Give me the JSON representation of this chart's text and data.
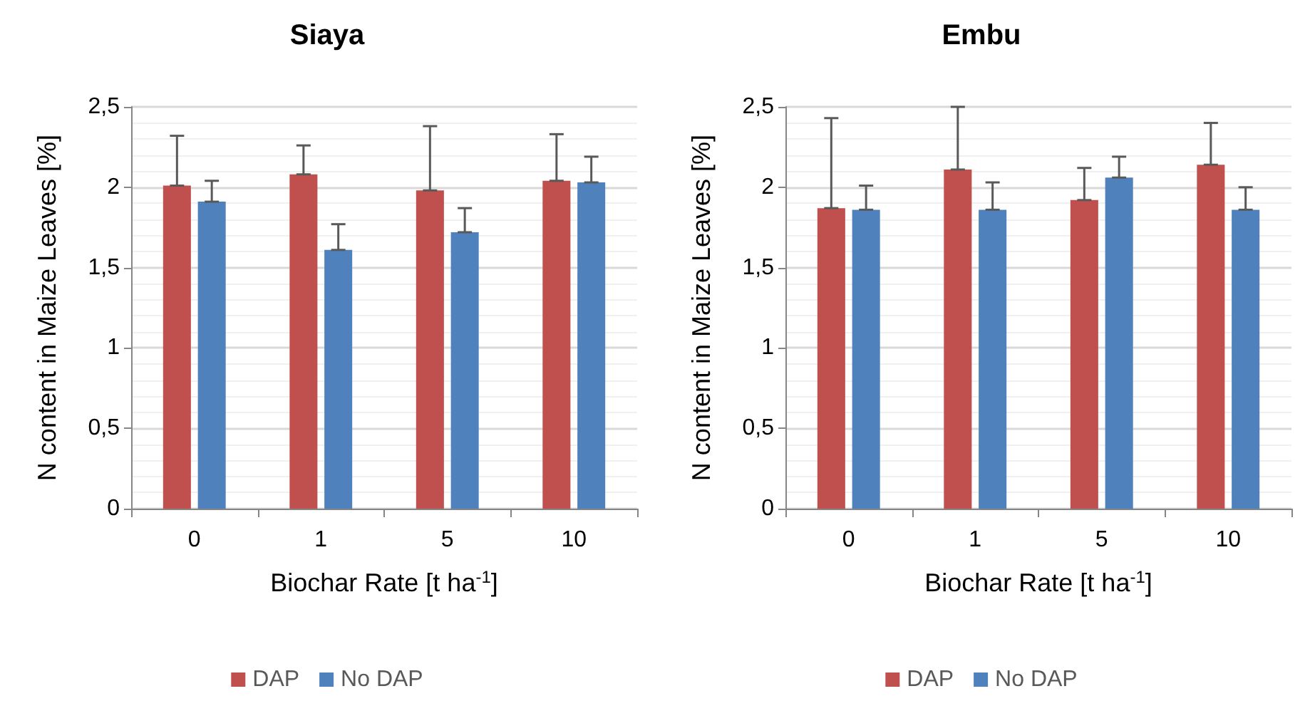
{
  "chart_data": [
    {
      "type": "bar",
      "title": "Siaya",
      "xlabel": "Biochar Rate [t ha$^{-1}$]",
      "ylabel": "N content in Maize Leaves [%]",
      "categories": [
        "0",
        "1",
        "5",
        "10"
      ],
      "series": [
        {
          "name": "DAP",
          "color": "#c0504d",
          "values": [
            2.01,
            2.08,
            1.98,
            2.04
          ],
          "errors": [
            [
              2.01,
              2.32
            ],
            [
              2.08,
              2.26
            ],
            [
              1.98,
              2.38
            ],
            [
              2.04,
              2.33
            ]
          ]
        },
        {
          "name": "No DAP",
          "color": "#4f81bd",
          "values": [
            1.91,
            1.61,
            1.72,
            2.03
          ],
          "errors": [
            [
              1.91,
              2.04
            ],
            [
              1.61,
              1.77
            ],
            [
              1.72,
              1.87
            ],
            [
              2.03,
              2.19
            ]
          ]
        }
      ],
      "ylim": [
        0,
        2.5
      ],
      "yticks": [
        {
          "value": 0,
          "label": "0"
        },
        {
          "value": 0.5,
          "label": "0,5"
        },
        {
          "value": 1,
          "label": "1"
        },
        {
          "value": 1.5,
          "label": "1,5"
        },
        {
          "value": 2,
          "label": "2"
        },
        {
          "value": 2.5,
          "label": "2,5"
        }
      ],
      "grid": "y",
      "legend": "bottom"
    },
    {
      "type": "bar",
      "title": "Embu",
      "xlabel": "Biochar Rate [t ha$^{-1}$]",
      "ylabel": "N content in Maize Leaves [%]",
      "categories": [
        "0",
        "1",
        "5",
        "10"
      ],
      "series": [
        {
          "name": "DAP",
          "color": "#c0504d",
          "values": [
            1.87,
            2.11,
            1.92,
            2.14
          ],
          "errors": [
            [
              1.87,
              2.43
            ],
            [
              2.11,
              2.5
            ],
            [
              1.92,
              2.12
            ],
            [
              2.14,
              2.4
            ]
          ]
        },
        {
          "name": "No DAP",
          "color": "#4f81bd",
          "values": [
            1.86,
            1.86,
            2.06,
            1.86
          ],
          "errors": [
            [
              1.86,
              2.01
            ],
            [
              1.86,
              2.03
            ],
            [
              2.06,
              2.19
            ],
            [
              1.86,
              2.0
            ]
          ]
        }
      ],
      "ylim": [
        0,
        2.5
      ],
      "yticks": [
        {
          "value": 0,
          "label": "0"
        },
        {
          "value": 0.5,
          "label": "0,5"
        },
        {
          "value": 1,
          "label": "1"
        },
        {
          "value": 1.5,
          "label": "1,5"
        },
        {
          "value": 2,
          "label": "2"
        },
        {
          "value": 2.5,
          "label": "2,5"
        }
      ],
      "grid": "y",
      "legend": "bottom"
    }
  ]
}
